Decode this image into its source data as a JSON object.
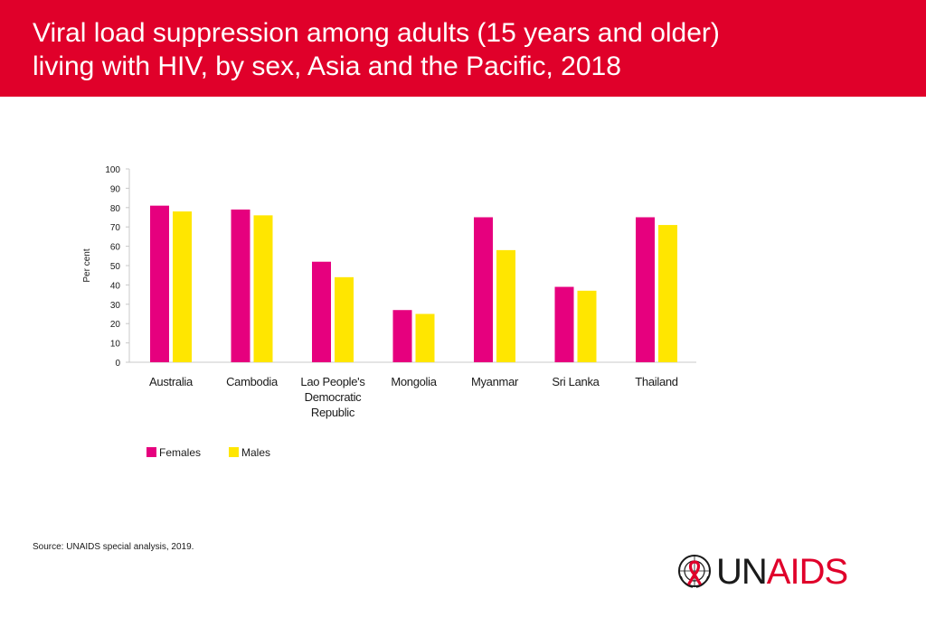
{
  "header": {
    "title_line1": "Viral load suppression among adults (15 years and older)",
    "title_line2": "living with HIV, by sex, Asia and the Pacific, 2018",
    "color": "#e0002a"
  },
  "chart_data": {
    "type": "bar",
    "categories": [
      [
        "Australia"
      ],
      [
        "Cambodia"
      ],
      [
        "Lao People's",
        "Democratic",
        "Republic"
      ],
      [
        "Mongolia"
      ],
      [
        "Myanmar"
      ],
      [
        "Sri Lanka"
      ],
      [
        "Thailand"
      ]
    ],
    "series": [
      {
        "name": "Females",
        "color": "#e6007e",
        "values": [
          81,
          79,
          52,
          27,
          75,
          39,
          75
        ]
      },
      {
        "name": "Males",
        "color": "#ffe600",
        "values": [
          78,
          76,
          44,
          25,
          58,
          37,
          71
        ]
      }
    ],
    "ylabel": "Per cent",
    "ylim": [
      0,
      100
    ],
    "yticks": [
      0,
      10,
      20,
      30,
      40,
      50,
      60,
      70,
      80,
      90,
      100
    ],
    "grid": false,
    "legend": "bottom-left"
  },
  "footer": {
    "source_label": "Source:",
    "source_text": " UNAIDS special analysis, 2019.",
    "logo_un": "UN",
    "logo_aids": "AIDS"
  }
}
